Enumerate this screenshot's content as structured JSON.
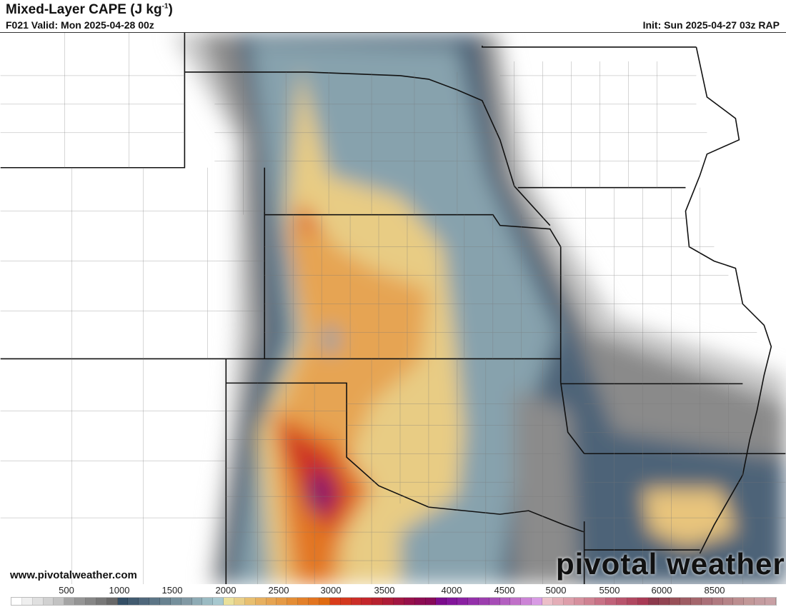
{
  "header": {
    "title": "Mixed-Layer CAPE (J kg",
    "title_sup": "-1",
    "title_close": ")",
    "valid": "F021 Valid: Mon 2025-04-28 00z",
    "init": "Init: Sun 2025-04-27 03z RAP"
  },
  "footer": {
    "website": "www.pivotalweather.com",
    "logo": "pivotal weather"
  },
  "colorbar": {
    "labels": [
      "500",
      "1000",
      "1500",
      "2000",
      "2500",
      "3000",
      "3500",
      "4000",
      "4500",
      "5000",
      "5500",
      "6000",
      "8500"
    ],
    "colors": [
      "#ffffff",
      "#efefef",
      "#e0e0e0",
      "#d1d1d1",
      "#c2c2c2",
      "#a4a4a4",
      "#959595",
      "#868686",
      "#777777",
      "#686868",
      "#344f66",
      "#425b70",
      "#4f677b",
      "#5c7586",
      "#688290",
      "#75909c",
      "#8199a4",
      "#8eabb5",
      "#9bbbc3",
      "#a7c8cf",
      "#eae09a",
      "#e9cf88",
      "#e8bf70",
      "#e7b060",
      "#e6a452",
      "#e59a45",
      "#e48d35",
      "#e3802a",
      "#e27420",
      "#e06a10",
      "#d93c1a",
      "#d3381e",
      "#cb2e28",
      "#c3262c",
      "#b72230",
      "#ae1c38",
      "#a21642",
      "#96104a",
      "#8c0c52",
      "#870a58",
      "#7b0c8c",
      "#82159a",
      "#8a20a2",
      "#9430aa",
      "#9c3eae",
      "#a64cb6",
      "#b35fc0",
      "#c070c8",
      "#cc84d6",
      "#d89be4",
      "#ecbfc8",
      "#e4adb7",
      "#dd9eaa",
      "#d6909e",
      "#cf8292",
      "#c87286",
      "#c06279",
      "#b8546c",
      "#b04760",
      "#a83a55",
      "#8c3a4c",
      "#924452",
      "#985058",
      "#9e5c63",
      "#a4666c",
      "#aa7078",
      "#b07a80",
      "#b68488",
      "#bc8e90",
      "#c29898",
      "#c49ca0",
      "#c8a0a4"
    ]
  },
  "map": {
    "field": "Mixed-Layer CAPE",
    "units": "J kg-1"
  }
}
